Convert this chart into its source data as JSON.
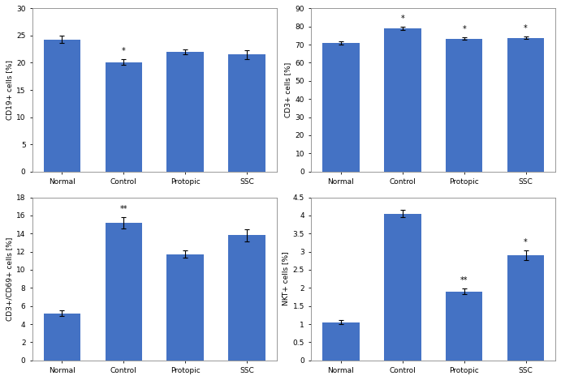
{
  "categories": [
    "Normal",
    "Control",
    "Protopic",
    "SSC"
  ],
  "bar_color": "#4472C4",
  "subplots": [
    {
      "ylabel": "CD19+ cells [%]",
      "values": [
        24.3,
        20.1,
        22.0,
        21.5
      ],
      "errors": [
        0.7,
        0.5,
        0.4,
        0.8
      ],
      "ylim": [
        0,
        30
      ],
      "yticks": [
        0,
        5,
        10,
        15,
        20,
        25,
        30
      ],
      "annotations": [
        "",
        "*",
        "",
        ""
      ]
    },
    {
      "ylabel": "CD3+ cells [%]",
      "values": [
        71.0,
        79.0,
        73.3,
        73.8
      ],
      "errors": [
        0.9,
        0.8,
        0.7,
        0.6
      ],
      "ylim": [
        0,
        90
      ],
      "yticks": [
        0,
        10,
        20,
        30,
        40,
        50,
        60,
        70,
        80,
        90
      ],
      "annotations": [
        "",
        "*",
        "*",
        "*"
      ]
    },
    {
      "ylabel": "CD3+/CD69+ cells [%]",
      "values": [
        5.2,
        15.2,
        11.7,
        13.8
      ],
      "errors": [
        0.3,
        0.6,
        0.4,
        0.7
      ],
      "ylim": [
        0,
        18
      ],
      "yticks": [
        0,
        2,
        4,
        6,
        8,
        10,
        12,
        14,
        16,
        18
      ],
      "annotations": [
        "",
        "**",
        "",
        ""
      ]
    },
    {
      "ylabel": "NKT+ cells [%]",
      "values": [
        1.05,
        4.05,
        1.9,
        2.9
      ],
      "errors": [
        0.06,
        0.1,
        0.08,
        0.13
      ],
      "ylim": [
        0,
        4.5
      ],
      "yticks": [
        0.0,
        0.5,
        1.0,
        1.5,
        2.0,
        2.5,
        3.0,
        3.5,
        4.0,
        4.5
      ],
      "annotations": [
        "",
        "",
        "**",
        "*"
      ]
    }
  ],
  "background_color": "#ffffff",
  "figure_background": "#ffffff",
  "border_color": "#cccccc"
}
